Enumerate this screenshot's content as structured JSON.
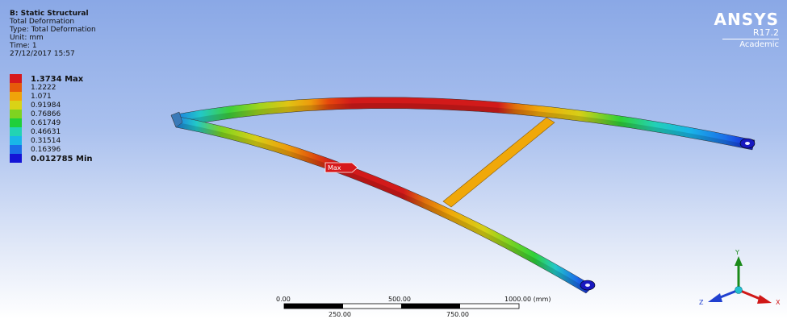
{
  "info": {
    "title": "B: Static Structural",
    "result": "Total Deformation",
    "type": "Type: Total Deformation",
    "unit": "Unit: mm",
    "time": "Time: 1",
    "timestamp": "27/12/2017 15:57"
  },
  "legend": {
    "items": [
      {
        "label": "1.3734 Max",
        "color": "#d7191c",
        "bold": true
      },
      {
        "label": "1.2222",
        "color": "#e65a0a",
        "bold": false
      },
      {
        "label": "1.071",
        "color": "#f0a30a",
        "bold": false
      },
      {
        "label": "0.91984",
        "color": "#d9d316",
        "bold": false
      },
      {
        "label": "0.76866",
        "color": "#7fd320",
        "bold": false
      },
      {
        "label": "0.61749",
        "color": "#1fcf3a",
        "bold": false
      },
      {
        "label": "0.46631",
        "color": "#22d3b4",
        "bold": false
      },
      {
        "label": "0.31514",
        "color": "#19b7e8",
        "bold": false
      },
      {
        "label": "0.16396",
        "color": "#1b6fe8",
        "bold": false
      },
      {
        "label": "0.012785 Min",
        "color": "#1414d6",
        "bold": true
      }
    ]
  },
  "brand": {
    "name": "ANSYS",
    "version": "R17.2",
    "edition": "Academic"
  },
  "probe": {
    "label": "Max"
  },
  "scale_bar": {
    "top_labels": [
      "0.00",
      "500.00",
      "1000.00 (mm)"
    ],
    "bottom_labels": [
      "250.00",
      "750.00"
    ]
  },
  "triad": {
    "x": "X",
    "y": "Y",
    "z": "Z"
  },
  "colors": {
    "x_axis": "#d01818",
    "y_axis": "#1a8a1a",
    "z_axis": "#2040d0",
    "origin": "#20c0d0"
  }
}
